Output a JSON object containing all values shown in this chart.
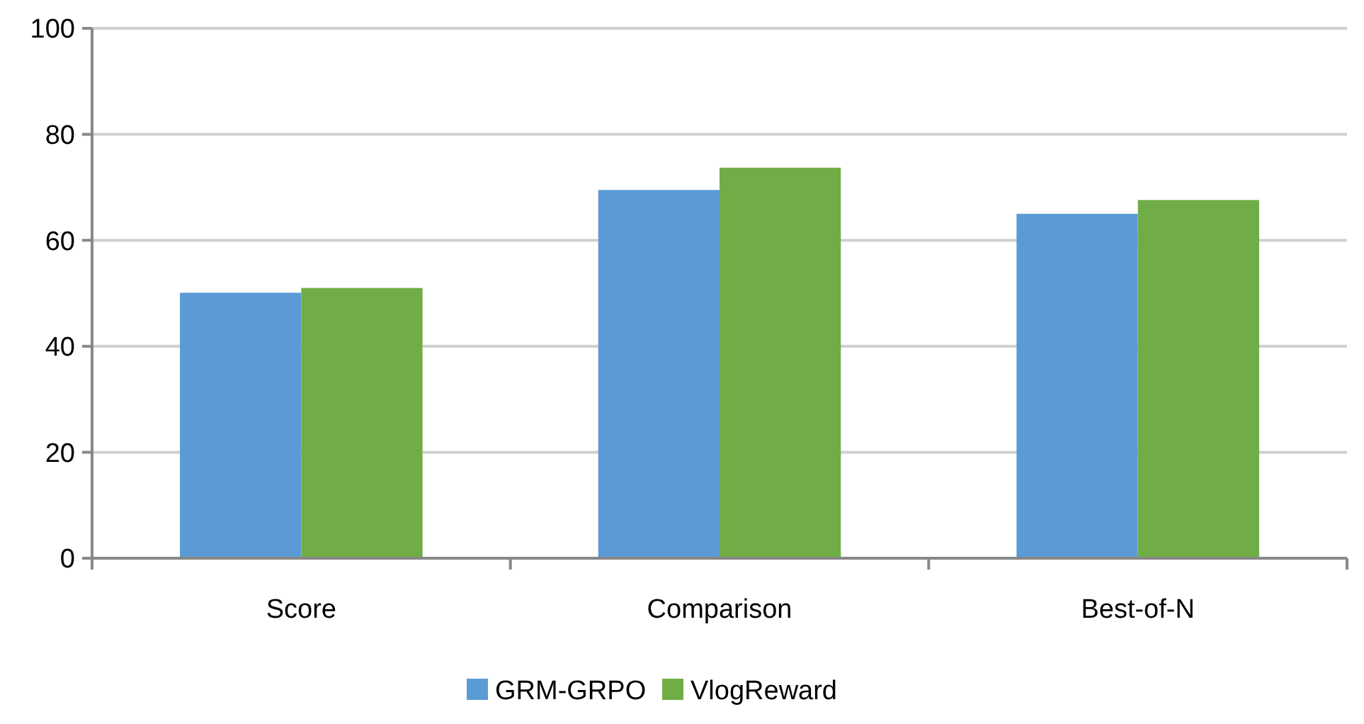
{
  "chart_data": {
    "type": "bar",
    "categories": [
      "Score",
      "Comparison",
      "Best-of-N"
    ],
    "series": [
      {
        "name": "GRM-GRPO",
        "color": "#5b9bd5",
        "values": [
          50.1,
          69.5,
          65.0
        ]
      },
      {
        "name": "VlogReward",
        "color": "#70ad47",
        "values": [
          51.0,
          73.7,
          67.6
        ]
      }
    ],
    "ylim": [
      0,
      100
    ],
    "yticks": [
      0,
      20,
      40,
      60,
      80,
      100
    ],
    "grid": "y",
    "legend": "bottom"
  }
}
